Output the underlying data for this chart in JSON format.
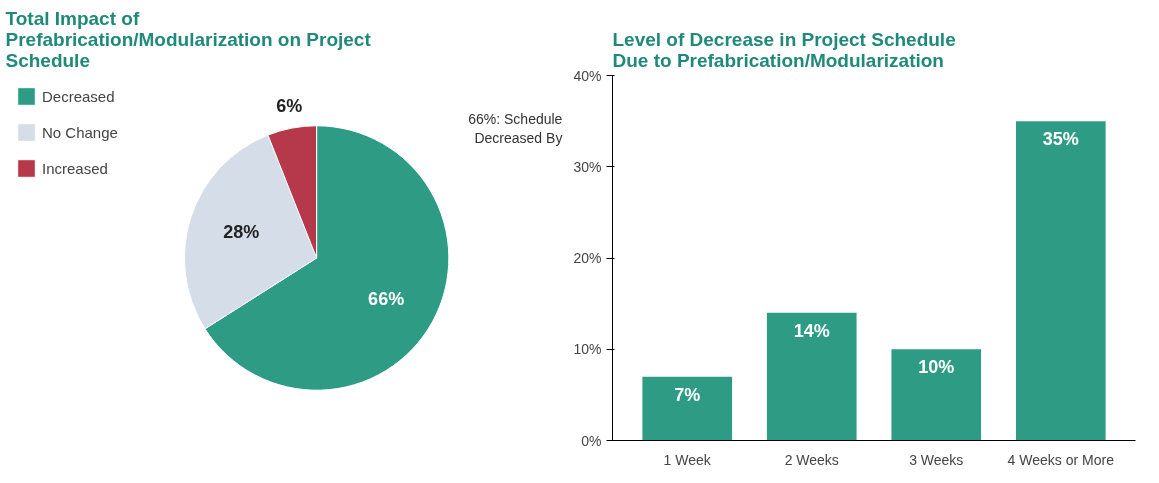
{
  "chart_data": [
    {
      "type": "pie",
      "title": "Total Impact of Prefabrication/Modularization on Project Schedule",
      "categories": [
        "Decreased",
        "No Change",
        "Increased"
      ],
      "values": [
        66,
        28,
        6
      ],
      "colors": [
        "#2e9c84",
        "#d5dde8",
        "#b5394a"
      ],
      "value_labels": [
        "66%",
        "28%",
        "6%"
      ],
      "legend": "left",
      "annotations": [
        "66%: Schedule Decreased By"
      ]
    },
    {
      "type": "bar",
      "title": "Level of Decrease in Project Schedule Due to Prefabrication/Modularization",
      "categories": [
        "1 Week",
        "2 Weeks",
        "3 Weeks",
        "4 Weeks or More"
      ],
      "values": [
        7,
        14,
        10,
        35
      ],
      "color": "#2e9c84",
      "value_labels": [
        "7%",
        "14%",
        "10%",
        "35%"
      ],
      "ylim": [
        0,
        40
      ],
      "yticks": [
        {
          "value": 0,
          "label": "0%"
        },
        {
          "value": 10,
          "label": "10%"
        },
        {
          "value": 20,
          "label": "20%"
        },
        {
          "value": 30,
          "label": "30%"
        },
        {
          "value": 40,
          "label": "40%"
        }
      ],
      "grid": false
    }
  ]
}
